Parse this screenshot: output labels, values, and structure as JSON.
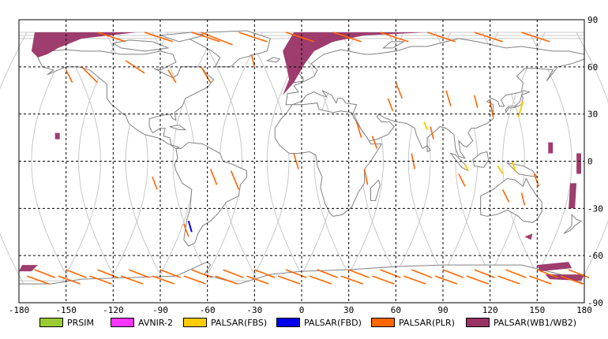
{
  "map": {
    "lon_ticks": [
      "-180",
      "-150",
      "-120",
      "-90",
      "-60",
      "-30",
      "0",
      "30",
      "60",
      "90",
      "120",
      "150",
      "180"
    ],
    "lat_ticks": [
      "90",
      "60",
      "30",
      "0",
      "-30",
      "-60",
      "-90"
    ]
  },
  "legend": [
    {
      "label": "PRSIM",
      "color": "#99cc33"
    },
    {
      "label": "AVNIR-2",
      "color": "#ff33ff"
    },
    {
      "label": "PALSAR(FBS)",
      "color": "#ffcc00"
    },
    {
      "label": "PALSAR(FBD)",
      "color": "#0000ee"
    },
    {
      "label": "PALSAR(PLR)",
      "color": "#ff6600"
    },
    {
      "label": "PALSAR(WB1/WB2)",
      "color": "#993366"
    }
  ],
  "colors": {
    "coast": "#808080",
    "orbit": "#c8c8c8",
    "grid": "#000000",
    "wb": "#993366",
    "plr": "#ff6600",
    "fbs": "#ffcc00",
    "fbd": "#0000ee"
  }
}
